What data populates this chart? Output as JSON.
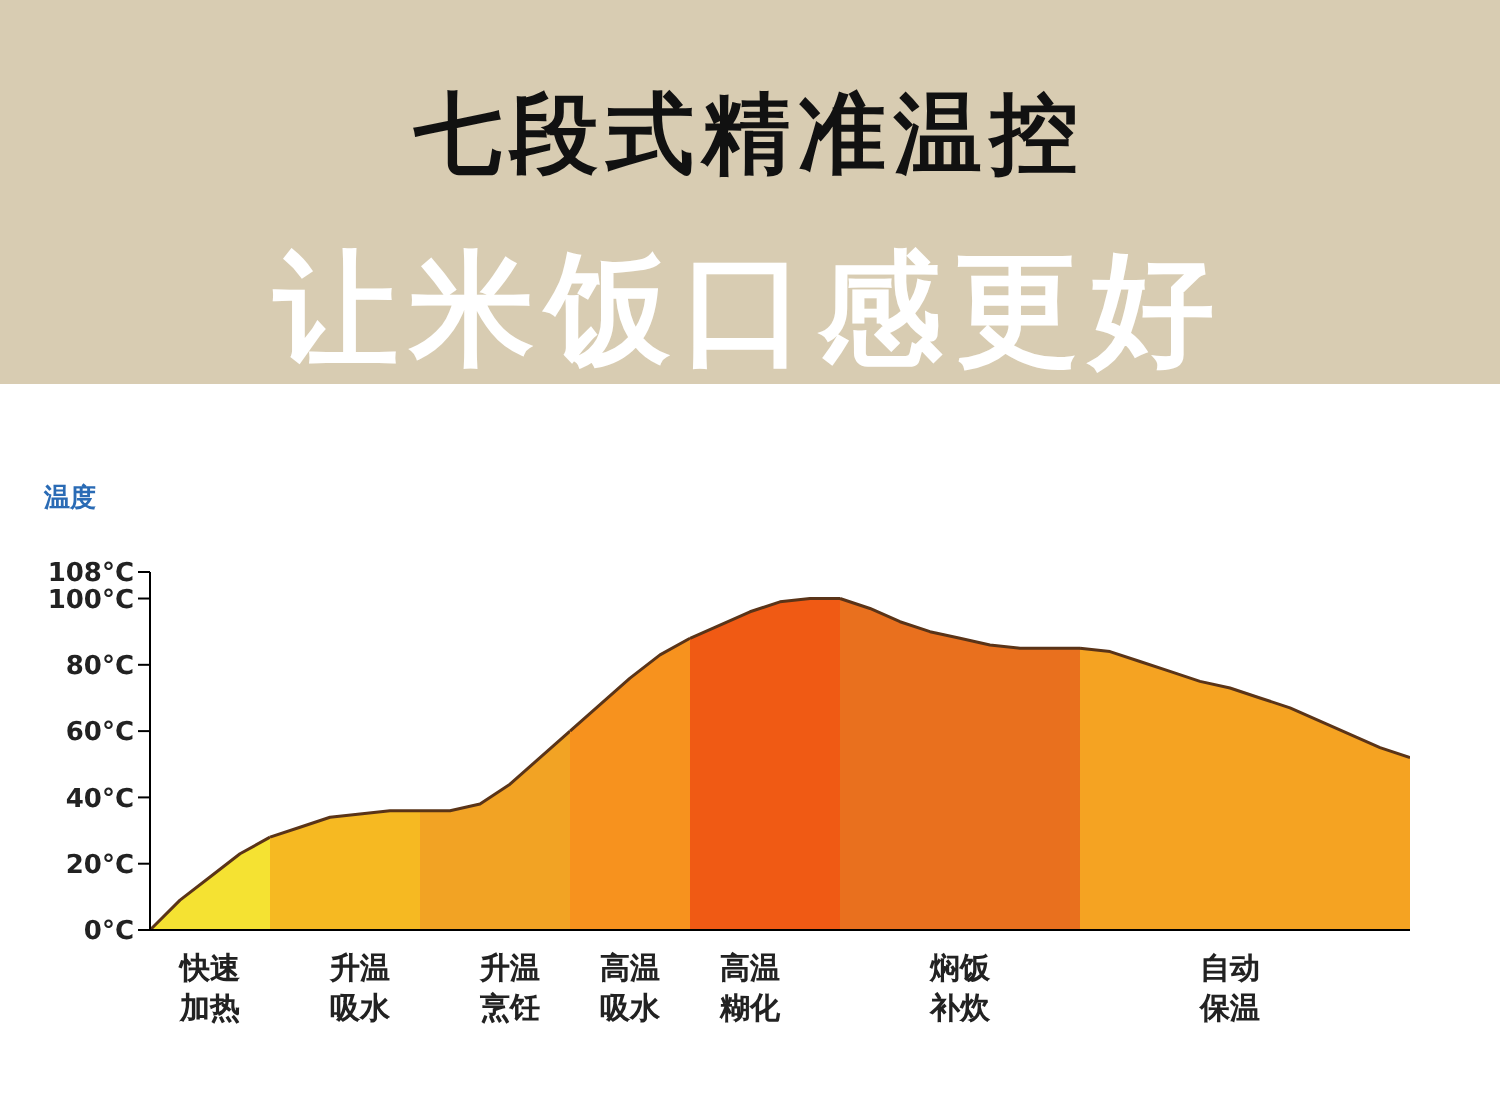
{
  "chart_data": {
    "type": "area",
    "title": "七段式精准温控",
    "subtitle": "让米饭口感更好",
    "ylabel": "温度",
    "categories": [
      null,
      null,
      "快速加热",
      null,
      null,
      null,
      null,
      "升温吸水",
      null,
      null,
      null,
      null,
      "升温烹饪",
      null,
      null,
      null,
      "高温吸水",
      null,
      null,
      null,
      "高温糊化",
      null,
      null,
      null,
      null,
      null,
      null,
      "焖饭补炊",
      null,
      null,
      null,
      null,
      null,
      null,
      null,
      null,
      "自动保温",
      null,
      null,
      null,
      null,
      null,
      null
    ],
    "series": [
      {
        "color": "#f5e232",
        "values": [
          0,
          9,
          16,
          23,
          28,
          null,
          null,
          null,
          null,
          null,
          null,
          null,
          null,
          null,
          null,
          null,
          null,
          null,
          null,
          null,
          null,
          null,
          null,
          null,
          null,
          null,
          null,
          null,
          null,
          null,
          null,
          null,
          null,
          null,
          null,
          null,
          null,
          null,
          null,
          null,
          null,
          null,
          null
        ]
      },
      {
        "color": "#f6b922",
        "values": [
          null,
          null,
          null,
          null,
          28,
          31,
          34,
          35,
          36,
          36,
          null,
          null,
          null,
          null,
          null,
          null,
          null,
          null,
          null,
          null,
          null,
          null,
          null,
          null,
          null,
          null,
          null,
          null,
          null,
          null,
          null,
          null,
          null,
          null,
          null,
          null,
          null,
          null,
          null,
          null,
          null,
          null,
          null
        ]
      },
      {
        "color": "#f2a324",
        "values": [
          null,
          null,
          null,
          null,
          null,
          null,
          null,
          null,
          null,
          36,
          36,
          38,
          44,
          52,
          60,
          null,
          null,
          null,
          null,
          null,
          null,
          null,
          null,
          null,
          null,
          null,
          null,
          null,
          null,
          null,
          null,
          null,
          null,
          null,
          null,
          null,
          null,
          null,
          null,
          null,
          null,
          null,
          null
        ]
      },
      {
        "color": "#f7921e",
        "values": [
          null,
          null,
          null,
          null,
          null,
          null,
          null,
          null,
          null,
          null,
          null,
          null,
          null,
          null,
          60,
          68,
          76,
          83,
          88,
          null,
          null,
          null,
          null,
          null,
          null,
          null,
          null,
          null,
          null,
          null,
          null,
          null,
          null,
          null,
          null,
          null,
          null,
          null,
          null,
          null,
          null,
          null,
          null
        ]
      },
      {
        "color": "#f05a14",
        "values": [
          null,
          null,
          null,
          null,
          null,
          null,
          null,
          null,
          null,
          null,
          null,
          null,
          null,
          null,
          null,
          null,
          null,
          null,
          88,
          92,
          96,
          99,
          100,
          100,
          null,
          null,
          null,
          null,
          null,
          null,
          null,
          null,
          null,
          null,
          null,
          null,
          null,
          null,
          null,
          null,
          null,
          null,
          null
        ]
      },
      {
        "color": "#e9701e",
        "values": [
          null,
          null,
          null,
          null,
          null,
          null,
          null,
          null,
          null,
          null,
          null,
          null,
          null,
          null,
          null,
          null,
          null,
          null,
          null,
          null,
          null,
          null,
          null,
          100,
          97,
          93,
          90,
          88,
          86,
          85,
          85,
          85,
          null,
          null,
          null,
          null,
          null,
          null,
          null,
          null,
          null,
          null,
          null
        ]
      },
      {
        "color": "#f5a322",
        "values": [
          null,
          null,
          null,
          null,
          null,
          null,
          null,
          null,
          null,
          null,
          null,
          null,
          null,
          null,
          null,
          null,
          null,
          null,
          null,
          null,
          null,
          null,
          null,
          null,
          null,
          null,
          null,
          null,
          null,
          null,
          null,
          85,
          84,
          81,
          78,
          75,
          73,
          70,
          67,
          63,
          59,
          55,
          52
        ]
      }
    ],
    "ylim": [
      0,
      108
    ],
    "yticks": [
      {
        "value": 0,
        "label": "0°C"
      },
      {
        "value": 20,
        "label": "20°C"
      },
      {
        "value": 40,
        "label": "40°C"
      },
      {
        "value": 60,
        "label": "60°C"
      },
      {
        "value": 80,
        "label": "80°C"
      },
      {
        "value": 100,
        "label": "100°C"
      },
      {
        "value": 108,
        "label": "108°C"
      }
    ]
  }
}
